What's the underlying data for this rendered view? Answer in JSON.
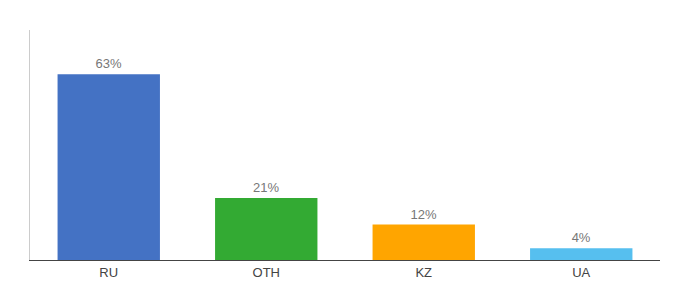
{
  "chart_data": {
    "type": "bar",
    "categories": [
      "RU",
      "OTH",
      "KZ",
      "UA"
    ],
    "values": [
      63,
      21,
      12,
      4
    ],
    "value_labels": [
      "63%",
      "21%",
      "12%",
      "4%"
    ],
    "data_labels": true,
    "colors": [
      "#4472C4",
      "#33AA33",
      "#FFA500",
      "#56BFEF"
    ],
    "ylim": [
      0,
      78
    ],
    "tick_labels": "x",
    "grid": false
  }
}
